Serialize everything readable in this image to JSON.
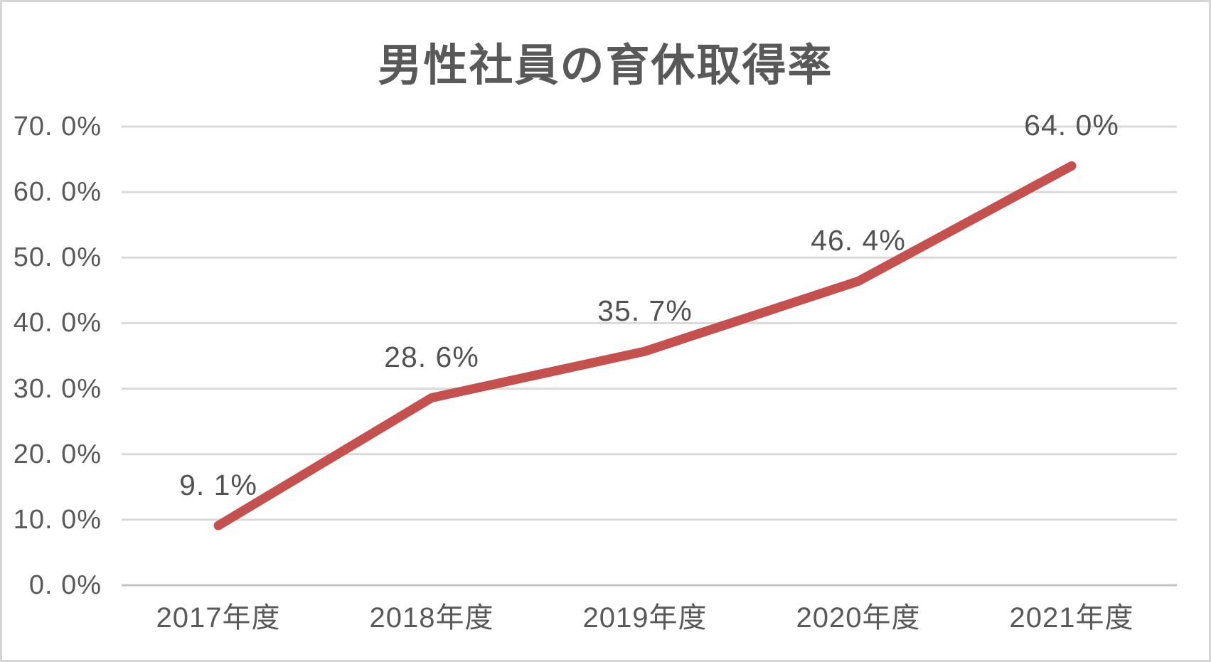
{
  "chart": {
    "background": "#FFFFFF",
    "border_color": "#D6D6D6",
    "title_color": "#595959",
    "tick_label_color": "#595959",
    "data_label_color": "#525252",
    "gridline_color": "#D9D9D9",
    "axis_line_color": "#C3C3C3",
    "line_color": "#C5514E"
  },
  "chart_data": {
    "type": "line",
    "title": "男性社員の育休取得率",
    "categories": [
      "2017年度",
      "2018年度",
      "2019年度",
      "2020年度",
      "2021年度"
    ],
    "values": [
      9.1,
      28.6,
      35.7,
      46.4,
      64.0
    ],
    "data_labels": [
      "9. 1%",
      "28. 6%",
      "35. 7%",
      "46. 4%",
      "64. 0%"
    ],
    "y_tick_labels": [
      "0. 0%",
      "10. 0%",
      "20. 0%",
      "30. 0%",
      "40. 0%",
      "50. 0%",
      "60. 0%",
      "70. 0%"
    ],
    "xlabel": "",
    "ylabel": "",
    "ylim": [
      0,
      70
    ],
    "y_tick_step": 10,
    "grid": true,
    "legend": "none",
    "markers": false
  }
}
